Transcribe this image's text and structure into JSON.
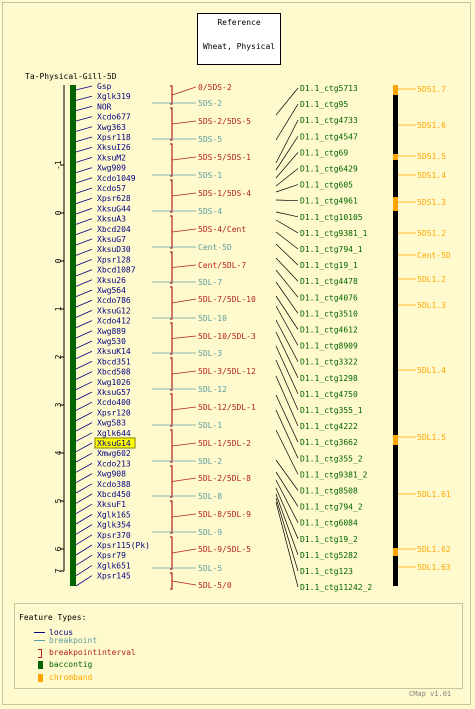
{
  "reference": {
    "title": "Reference",
    "subtitle": "Wheat, Physical"
  },
  "map_title": "Ta-Physical-Gill-5D",
  "axis_ticks": [
    "-1",
    "0",
    "0",
    "1",
    "2",
    "3",
    "4",
    "5",
    "6",
    "7"
  ],
  "loci": [
    "Gsp",
    "Xglk319",
    "NOR",
    "Xcdo677",
    "Xwg363",
    "Xpsr118",
    "XksuI26",
    "XksuM2",
    "Xwg909",
    "Xcdo1049",
    "Xcdo57",
    "Xpsr628",
    "XksuG44",
    "XksuA3",
    "Xbcd204",
    "XksuG7",
    "XksuD30",
    "Xpsr128",
    "Xbcd1087",
    "Xksu26",
    "Xwg564",
    "Xcdo786",
    "XksuG12",
    "Xcdo412",
    "Xwg889",
    "Xwg530",
    "XksuK14",
    "Xbcd351",
    "Xbcd508",
    "Xwg1026",
    "XksuG57",
    "Xcdo400",
    "Xpsr120",
    "Xwg583",
    "Xglk644",
    "XksuG14",
    "Xmwg602",
    "Xcdo213",
    "Xwg908",
    "Xcdo388",
    "Xbcd450",
    "XksuF1",
    "Xglk165",
    "Xglk354",
    "Xpsr370",
    "Xpsr115(Pk)",
    "Xpsr79",
    "Xglk651",
    "Xpsr145"
  ],
  "highlighted_locus": "XksuG14",
  "breakpoints": [
    "5DS-2",
    "5DS-5",
    "5DS-1",
    "5DS-4",
    "Cent-5D",
    "5DL-7",
    "5DL-10",
    "5DL-3",
    "5DL-12",
    "5DL-1",
    "5DL-2",
    "5DL-8",
    "5DL-9",
    "5DL-5"
  ],
  "intervals": [
    "0/5DS-2",
    "5DS-2/5DS-5",
    "5DS-5/5DS-1",
    "5DS-1/5DS-4",
    "5DS-4/Cent",
    "Cent/5DL-7",
    "5DL-7/5DL-10",
    "5DL-10/5DL-3",
    "5DL-3/5DL-12",
    "5DL-12/5DL-1",
    "5DL-1/5DL-2",
    "5DL-2/5DL-8",
    "5DL-8/5DL-9",
    "5DL-9/5DL-5",
    "5DL-5/0"
  ],
  "contigs": [
    "D1.1_ctg5713",
    "D1.1_ctg95",
    "D1.1_ctg4733",
    "D1.1_ctg4547",
    "D1.1_ctg69",
    "D1.1_ctg6429",
    "D1.1_ctg605",
    "D1.1_ctg4961",
    "D1.1_ctg10105",
    "D1.1_ctg9381_1",
    "D1.1_ctg794_1",
    "D1.1_ctg19_1",
    "D1.1_ctg4478",
    "D1.1_ctg4076",
    "D1.1_ctg3510",
    "D1.1_ctg4612",
    "D1.1_ctg8909",
    "D1.1_ctg3322",
    "D1.1_ctg1298",
    "D1.1_ctg4750",
    "D1.1_ctg355_1",
    "D1.1_ctg4222",
    "D1.1_ctg3662",
    "D1.1_ctg355_2",
    "D1.1_ctg9381_2",
    "D1.1_ctg8508",
    "D1.1_ctg794_2",
    "D1.1_ctg6084",
    "D1.1_ctg19_2",
    "D1.1_ctg5282",
    "D1.1_ctg123",
    "D1.1_ctg11242_2"
  ],
  "chrombands": [
    "5DS1.7",
    "5DS1.6",
    "5DS1.5",
    "5DS1.4",
    "5DS1.3",
    "5DS1.2",
    "Cent-5D",
    "5DL1.2",
    "5DL1.3",
    "5DL1.4",
    "5DL1.5",
    "5DL1.61",
    "5DL1.62",
    "5DL1.63"
  ],
  "legend": {
    "title": "Feature Types:",
    "items": [
      {
        "label": "locus",
        "color": "#000080"
      },
      {
        "label": "breakpoint",
        "color": "#5f9ea0"
      },
      {
        "label": "breakpointinterval",
        "color": "#b22222"
      },
      {
        "label": "baccontig",
        "color": "#006400"
      },
      {
        "label": "chromband",
        "color": "#ffa500"
      }
    ]
  },
  "version": "CMap v1.01",
  "colors": {
    "background": "#fffacd",
    "locus": "#000080",
    "breakpoint": "#5f9ea0",
    "interval": "#b22222",
    "contig": "#006400",
    "band": "#ffa500",
    "highlight": "#ffff00"
  }
}
